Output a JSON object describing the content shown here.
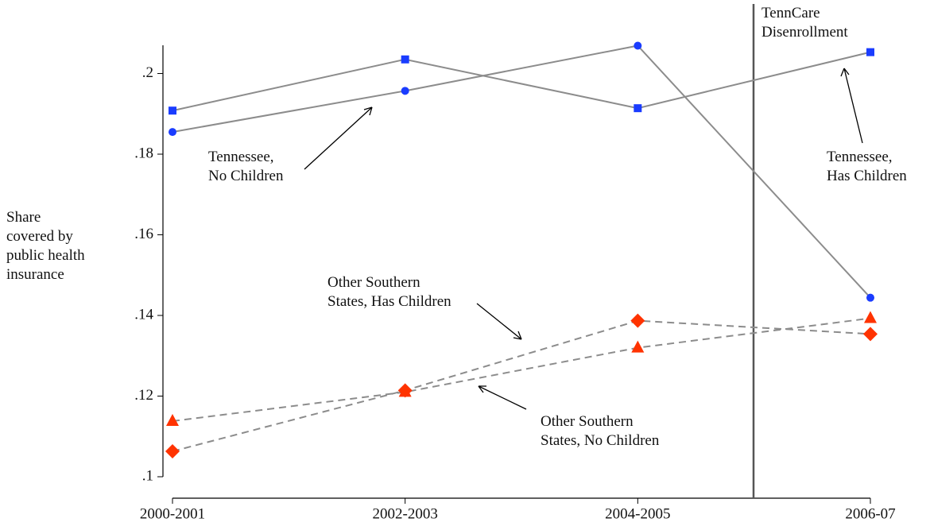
{
  "chart_data": {
    "type": "line",
    "y_label": "Share\ncovered by\npublic health\ninsurance",
    "categories": [
      "2000-2001",
      "2002-2003",
      "2004-2005",
      "2006-07"
    ],
    "ylim": [
      0.1,
      0.207
    ],
    "yticks": [
      {
        "value": 0.1,
        "label": ".1"
      },
      {
        "value": 0.12,
        "label": ".12"
      },
      {
        "value": 0.14,
        "label": ".14"
      },
      {
        "value": 0.16,
        "label": ".16"
      },
      {
        "value": 0.18,
        "label": ".18"
      },
      {
        "value": 0.2,
        "label": ".2"
      }
    ],
    "annotation": "TennCare\nDisenrollment",
    "line_color": "#8c8c8c",
    "series": [
      {
        "name": "Tennessee,\nHas Children",
        "color": "#1a3cff",
        "marker": "square",
        "linestyle": "solid",
        "values": [
          0.1908,
          0.2035,
          0.1914,
          0.2053
        ]
      },
      {
        "name": "Tennessee,\nNo Children",
        "color": "#1a3cff",
        "marker": "circle",
        "linestyle": "solid",
        "values": [
          0.1855,
          0.1957,
          0.2069,
          0.1444
        ]
      },
      {
        "name": "Other Southern\nStates, Has Children",
        "color": "#ff3300",
        "marker": "diamond",
        "linestyle": "dashed",
        "values": [
          0.1063,
          0.1214,
          0.1387,
          0.1354
        ]
      },
      {
        "name": "Other Southern\nStates, No Children",
        "color": "#ff3300",
        "marker": "triangle",
        "linestyle": "dashed",
        "values": [
          0.1138,
          0.121,
          0.132,
          0.1393
        ]
      }
    ]
  }
}
